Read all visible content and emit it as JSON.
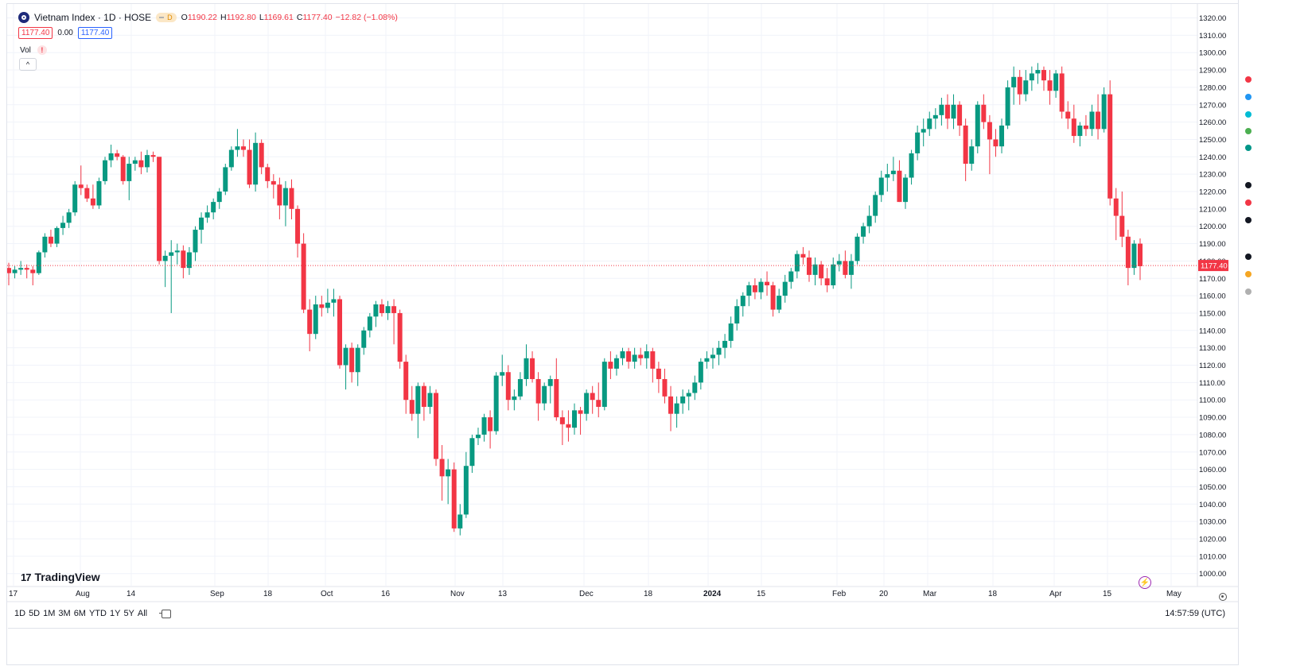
{
  "header": {
    "symbol_title": "Vietnam Index · 1D · HOSE",
    "badge": "D",
    "ohlc": {
      "open_label": "O",
      "open": "1190.22",
      "high_label": "H",
      "high": "1192.80",
      "low_label": "L",
      "low": "1169.61",
      "close_label": "C",
      "close": "1177.40",
      "change": "−12.82 (−1.08%)"
    },
    "bid": "1177.40",
    "spread": "0.00",
    "ask": "1177.40",
    "volume_label": "Vol",
    "volume_warning": "!",
    "collapse": "^"
  },
  "logo_text": "TradingView",
  "price_axis": {
    "ticks": [
      "1320.00",
      "1310.00",
      "1300.00",
      "1290.00",
      "1280.00",
      "1270.00",
      "1260.00",
      "1250.00",
      "1240.00",
      "1230.00",
      "1220.00",
      "1210.00",
      "1200.00",
      "1190.00",
      "1180.00",
      "1170.00",
      "1160.00",
      "1150.00",
      "1140.00",
      "1130.00",
      "1120.00",
      "1110.00",
      "1100.00",
      "1090.00",
      "1080.00",
      "1070.00",
      "1060.00",
      "1050.00",
      "1040.00",
      "1030.00",
      "1020.00",
      "1010.00",
      "1000.00"
    ],
    "current_price": "1177.40"
  },
  "time_axis": {
    "labels": [
      "17",
      "Aug",
      "14",
      "Sep",
      "18",
      "Oct",
      "16",
      "Nov",
      "13",
      "Dec",
      "18",
      "2024",
      "15",
      "Feb",
      "20",
      "Mar",
      "18",
      "Apr",
      "15",
      "May"
    ]
  },
  "range_buttons": [
    "1D",
    "5D",
    "1M",
    "3M",
    "6M",
    "YTD",
    "1Y",
    "5Y",
    "All"
  ],
  "clock": "14:57:59 (UTC)",
  "colors": {
    "up": "#089981",
    "down": "#f23645",
    "grid": "#f0f3fa",
    "accent": "#2962ff"
  },
  "chart_data": {
    "type": "candlestick",
    "ylim": [
      995,
      1325
    ],
    "candles": [
      [
        1176,
        1179,
        1166,
        1173
      ],
      [
        1173,
        1177,
        1170,
        1175
      ],
      [
        1175,
        1180,
        1172,
        1176
      ],
      [
        1176,
        1178,
        1170,
        1175
      ],
      [
        1175,
        1177,
        1166,
        1173
      ],
      [
        1173,
        1186,
        1172,
        1185
      ],
      [
        1185,
        1196,
        1182,
        1194
      ],
      [
        1194,
        1198,
        1188,
        1190
      ],
      [
        1190,
        1200,
        1188,
        1199
      ],
      [
        1199,
        1206,
        1195,
        1202
      ],
      [
        1202,
        1210,
        1199,
        1208
      ],
      [
        1208,
        1226,
        1206,
        1224
      ],
      [
        1224,
        1235,
        1218,
        1222
      ],
      [
        1222,
        1224,
        1214,
        1216
      ],
      [
        1216,
        1224,
        1210,
        1212
      ],
      [
        1212,
        1228,
        1210,
        1226
      ],
      [
        1226,
        1240,
        1224,
        1238
      ],
      [
        1238,
        1247,
        1234,
        1242
      ],
      [
        1242,
        1244,
        1238,
        1240
      ],
      [
        1240,
        1241,
        1224,
        1226
      ],
      [
        1226,
        1240,
        1215,
        1236
      ],
      [
        1236,
        1240,
        1232,
        1238
      ],
      [
        1238,
        1243,
        1230,
        1234
      ],
      [
        1234,
        1244,
        1231,
        1241
      ],
      [
        1241,
        1243,
        1237,
        1240
      ],
      [
        1240,
        1238,
        1178,
        1180
      ],
      [
        1180,
        1186,
        1165,
        1183
      ],
      [
        1183,
        1192,
        1150,
        1185
      ],
      [
        1185,
        1190,
        1178,
        1186
      ],
      [
        1186,
        1189,
        1170,
        1176
      ],
      [
        1176,
        1188,
        1172,
        1185
      ],
      [
        1185,
        1200,
        1180,
        1198
      ],
      [
        1198,
        1208,
        1190,
        1205
      ],
      [
        1205,
        1212,
        1202,
        1208
      ],
      [
        1208,
        1216,
        1204,
        1214
      ],
      [
        1214,
        1222,
        1210,
        1220
      ],
      [
        1220,
        1236,
        1218,
        1234
      ],
      [
        1234,
        1246,
        1232,
        1244
      ],
      [
        1244,
        1256,
        1240,
        1246
      ],
      [
        1246,
        1250,
        1240,
        1244
      ],
      [
        1244,
        1250,
        1222,
        1224
      ],
      [
        1224,
        1254,
        1220,
        1248
      ],
      [
        1248,
        1250,
        1230,
        1234
      ],
      [
        1234,
        1236,
        1222,
        1226
      ],
      [
        1226,
        1230,
        1216,
        1224
      ],
      [
        1224,
        1228,
        1204,
        1212
      ],
      [
        1212,
        1226,
        1200,
        1222
      ],
      [
        1222,
        1227,
        1204,
        1210
      ],
      [
        1210,
        1212,
        1182,
        1190
      ],
      [
        1190,
        1196,
        1150,
        1152
      ],
      [
        1152,
        1158,
        1128,
        1138
      ],
      [
        1138,
        1160,
        1135,
        1155
      ],
      [
        1155,
        1160,
        1148,
        1153
      ],
      [
        1153,
        1164,
        1150,
        1156
      ],
      [
        1156,
        1164,
        1148,
        1158
      ],
      [
        1158,
        1160,
        1118,
        1120
      ],
      [
        1120,
        1132,
        1106,
        1130
      ],
      [
        1130,
        1133,
        1110,
        1116
      ],
      [
        1116,
        1132,
        1108,
        1130
      ],
      [
        1130,
        1142,
        1126,
        1140
      ],
      [
        1140,
        1150,
        1136,
        1148
      ],
      [
        1148,
        1157,
        1142,
        1155
      ],
      [
        1155,
        1158,
        1148,
        1150
      ],
      [
        1150,
        1157,
        1146,
        1154
      ],
      [
        1154,
        1158,
        1132,
        1150
      ],
      [
        1150,
        1152,
        1118,
        1122
      ],
      [
        1122,
        1126,
        1092,
        1100
      ],
      [
        1100,
        1108,
        1088,
        1092
      ],
      [
        1092,
        1110,
        1078,
        1108
      ],
      [
        1108,
        1110,
        1088,
        1096
      ],
      [
        1096,
        1108,
        1092,
        1104
      ],
      [
        1104,
        1106,
        1062,
        1066
      ],
      [
        1066,
        1074,
        1042,
        1056
      ],
      [
        1056,
        1066,
        1040,
        1060
      ],
      [
        1060,
        1064,
        1024,
        1026
      ],
      [
        1026,
        1040,
        1022,
        1034
      ],
      [
        1034,
        1070,
        1032,
        1062
      ],
      [
        1062,
        1080,
        1058,
        1078
      ],
      [
        1078,
        1084,
        1074,
        1080
      ],
      [
        1080,
        1092,
        1076,
        1090
      ],
      [
        1090,
        1094,
        1072,
        1082
      ],
      [
        1082,
        1116,
        1080,
        1114
      ],
      [
        1114,
        1126,
        1108,
        1116
      ],
      [
        1116,
        1120,
        1094,
        1100
      ],
      [
        1100,
        1106,
        1094,
        1102
      ],
      [
        1102,
        1116,
        1100,
        1112
      ],
      [
        1112,
        1132,
        1108,
        1124
      ],
      [
        1124,
        1128,
        1110,
        1112
      ],
      [
        1112,
        1116,
        1088,
        1098
      ],
      [
        1098,
        1110,
        1094,
        1108
      ],
      [
        1108,
        1114,
        1098,
        1112
      ],
      [
        1112,
        1124,
        1088,
        1090
      ],
      [
        1090,
        1094,
        1074,
        1086
      ],
      [
        1086,
        1094,
        1076,
        1084
      ],
      [
        1084,
        1098,
        1080,
        1094
      ],
      [
        1094,
        1096,
        1080,
        1092
      ],
      [
        1092,
        1106,
        1088,
        1104
      ],
      [
        1104,
        1108,
        1092,
        1100
      ],
      [
        1100,
        1110,
        1090,
        1096
      ],
      [
        1096,
        1124,
        1094,
        1122
      ],
      [
        1122,
        1128,
        1112,
        1118
      ],
      [
        1118,
        1126,
        1114,
        1124
      ],
      [
        1124,
        1130,
        1120,
        1128
      ],
      [
        1128,
        1130,
        1118,
        1122
      ],
      [
        1122,
        1130,
        1118,
        1126
      ],
      [
        1126,
        1130,
        1120,
        1124
      ],
      [
        1124,
        1132,
        1118,
        1128
      ],
      [
        1128,
        1130,
        1110,
        1118
      ],
      [
        1118,
        1122,
        1104,
        1112
      ],
      [
        1112,
        1118,
        1098,
        1102
      ],
      [
        1102,
        1108,
        1082,
        1092
      ],
      [
        1092,
        1102,
        1084,
        1098
      ],
      [
        1098,
        1106,
        1092,
        1102
      ],
      [
        1102,
        1106,
        1094,
        1104
      ],
      [
        1104,
        1114,
        1100,
        1110
      ],
      [
        1110,
        1124,
        1106,
        1122
      ],
      [
        1122,
        1128,
        1118,
        1124
      ],
      [
        1124,
        1130,
        1118,
        1126
      ],
      [
        1126,
        1134,
        1120,
        1130
      ],
      [
        1130,
        1138,
        1124,
        1134
      ],
      [
        1134,
        1148,
        1130,
        1144
      ],
      [
        1144,
        1158,
        1140,
        1154
      ],
      [
        1154,
        1162,
        1148,
        1160
      ],
      [
        1160,
        1168,
        1154,
        1166
      ],
      [
        1166,
        1170,
        1158,
        1162
      ],
      [
        1162,
        1170,
        1158,
        1168
      ],
      [
        1168,
        1174,
        1160,
        1166
      ],
      [
        1166,
        1168,
        1148,
        1152
      ],
      [
        1152,
        1164,
        1150,
        1160
      ],
      [
        1160,
        1172,
        1156,
        1168
      ],
      [
        1168,
        1176,
        1164,
        1174
      ],
      [
        1174,
        1186,
        1170,
        1184
      ],
      [
        1184,
        1188,
        1178,
        1182
      ],
      [
        1182,
        1186,
        1168,
        1172
      ],
      [
        1172,
        1182,
        1166,
        1178
      ],
      [
        1178,
        1180,
        1166,
        1170
      ],
      [
        1170,
        1176,
        1162,
        1166
      ],
      [
        1166,
        1182,
        1164,
        1178
      ],
      [
        1178,
        1184,
        1174,
        1180
      ],
      [
        1180,
        1186,
        1170,
        1172
      ],
      [
        1172,
        1184,
        1164,
        1180
      ],
      [
        1180,
        1196,
        1178,
        1194
      ],
      [
        1194,
        1202,
        1190,
        1200
      ],
      [
        1200,
        1212,
        1196,
        1206
      ],
      [
        1206,
        1220,
        1202,
        1218
      ],
      [
        1218,
        1232,
        1214,
        1228
      ],
      [
        1228,
        1236,
        1220,
        1230
      ],
      [
        1230,
        1240,
        1226,
        1232
      ],
      [
        1232,
        1238,
        1214,
        1214
      ],
      [
        1214,
        1230,
        1210,
        1228
      ],
      [
        1228,
        1244,
        1224,
        1242
      ],
      [
        1242,
        1258,
        1238,
        1254
      ],
      [
        1254,
        1262,
        1246,
        1256
      ],
      [
        1256,
        1266,
        1252,
        1262
      ],
      [
        1262,
        1268,
        1256,
        1264
      ],
      [
        1264,
        1274,
        1258,
        1270
      ],
      [
        1270,
        1276,
        1256,
        1262
      ],
      [
        1262,
        1276,
        1256,
        1270
      ],
      [
        1270,
        1272,
        1252,
        1258
      ],
      [
        1258,
        1262,
        1226,
        1236
      ],
      [
        1236,
        1250,
        1232,
        1246
      ],
      [
        1246,
        1272,
        1242,
        1270
      ],
      [
        1270,
        1276,
        1256,
        1260
      ],
      [
        1260,
        1264,
        1230,
        1250
      ],
      [
        1250,
        1256,
        1240,
        1246
      ],
      [
        1246,
        1262,
        1242,
        1258
      ],
      [
        1258,
        1284,
        1256,
        1280
      ],
      [
        1280,
        1292,
        1270,
        1286
      ],
      [
        1286,
        1290,
        1270,
        1276
      ],
      [
        1276,
        1290,
        1272,
        1284
      ],
      [
        1284,
        1292,
        1278,
        1288
      ],
      [
        1288,
        1294,
        1282,
        1290
      ],
      [
        1290,
        1292,
        1278,
        1284
      ],
      [
        1284,
        1290,
        1270,
        1278
      ],
      [
        1278,
        1290,
        1274,
        1288
      ],
      [
        1288,
        1292,
        1262,
        1266
      ],
      [
        1266,
        1272,
        1256,
        1262
      ],
      [
        1262,
        1270,
        1248,
        1252
      ],
      [
        1252,
        1260,
        1246,
        1258
      ],
      [
        1258,
        1264,
        1252,
        1256
      ],
      [
        1256,
        1270,
        1252,
        1266
      ],
      [
        1266,
        1276,
        1250,
        1256
      ],
      [
        1256,
        1280,
        1254,
        1276
      ],
      [
        1276,
        1284,
        1212,
        1216
      ],
      [
        1216,
        1222,
        1192,
        1206
      ],
      [
        1206,
        1220,
        1188,
        1194
      ],
      [
        1194,
        1198,
        1166,
        1176
      ],
      [
        1176,
        1192,
        1172,
        1190
      ],
      [
        1190,
        1193,
        1169,
        1177
      ]
    ]
  }
}
